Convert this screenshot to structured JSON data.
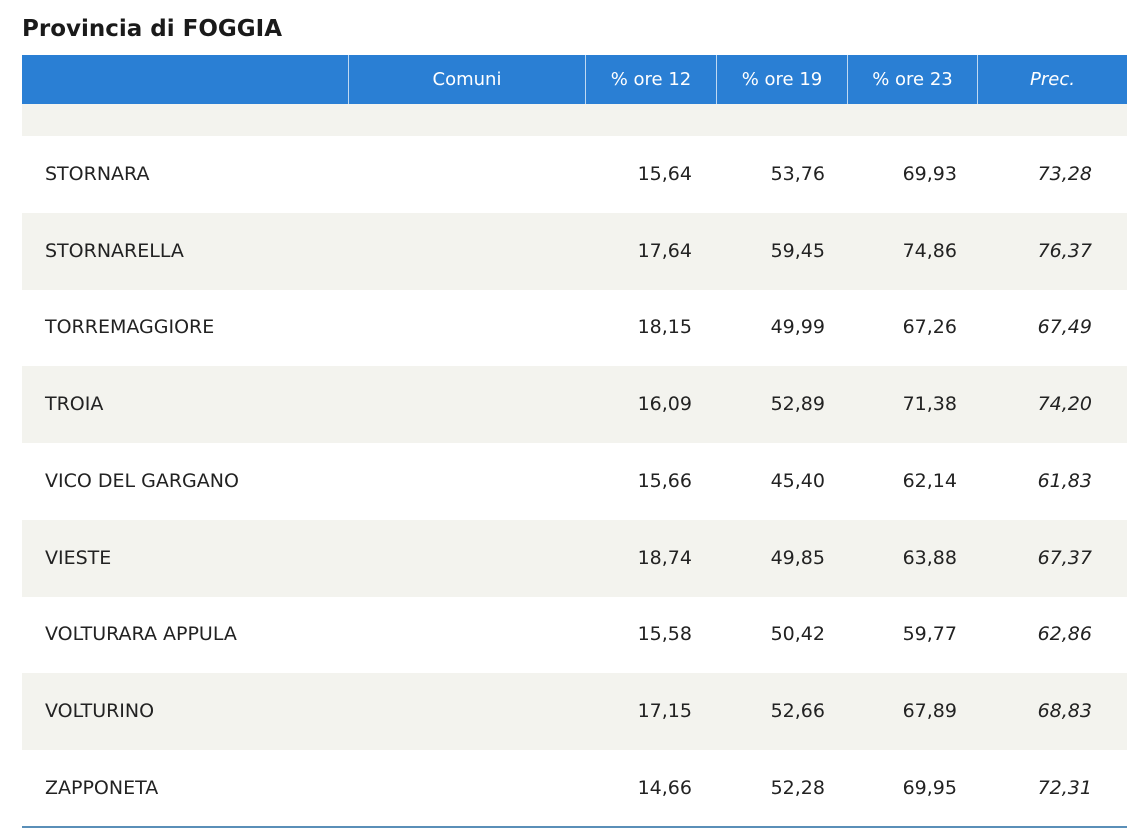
{
  "header": {
    "title": "Provincia di FOGGIA"
  },
  "table": {
    "columns": [
      "Comuni",
      "% ore 12",
      "% ore 19",
      "% ore 23",
      "Prec."
    ],
    "rows": [
      [
        "STORNARA",
        "15,64",
        "53,76",
        "69,93",
        "73,28"
      ],
      [
        "STORNARELLA",
        "17,64",
        "59,45",
        "74,86",
        "76,37"
      ],
      [
        "TORREMAGGIORE",
        "18,15",
        "49,99",
        "67,26",
        "67,49"
      ],
      [
        "TROIA",
        "16,09",
        "52,89",
        "71,38",
        "74,20"
      ],
      [
        "VICO DEL GARGANO",
        "15,66",
        "45,40",
        "62,14",
        "61,83"
      ],
      [
        "VIESTE",
        "18,74",
        "49,85",
        "63,88",
        "67,37"
      ],
      [
        "VOLTURARA APPULA",
        "15,58",
        "50,42",
        "59,77",
        "62,86"
      ],
      [
        "VOLTURINO",
        "17,15",
        "52,66",
        "67,89",
        "68,83"
      ],
      [
        "ZAPPONETA",
        "14,66",
        "52,28",
        "69,95",
        "72,31"
      ]
    ]
  }
}
